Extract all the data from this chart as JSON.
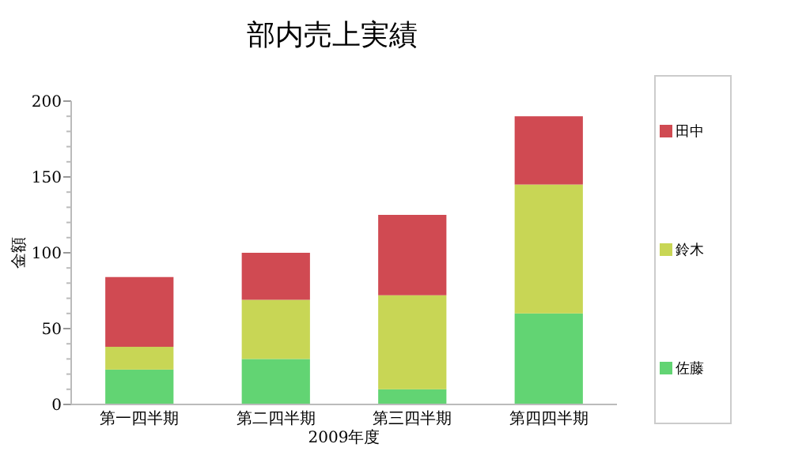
{
  "chart_data": {
    "type": "bar",
    "title": "部内売上実績",
    "xlabel": "2009年度",
    "ylabel": "金額",
    "categories": [
      "第一四半期",
      "第二四半期",
      "第三四半期",
      "第四四半期"
    ],
    "stacked": true,
    "series": [
      {
        "name": "佐藤",
        "color": "#62d473",
        "values": [
          23,
          30,
          10,
          60
        ]
      },
      {
        "name": "鈴木",
        "color": "#c8d655",
        "values": [
          15,
          39,
          62,
          85
        ]
      },
      {
        "name": "田中",
        "color": "#d04a52",
        "values": [
          46,
          31,
          53,
          45
        ]
      }
    ],
    "ylim": [
      0,
      200
    ],
    "yticks": [
      0,
      50,
      100,
      150,
      200
    ],
    "legend": "right"
  }
}
